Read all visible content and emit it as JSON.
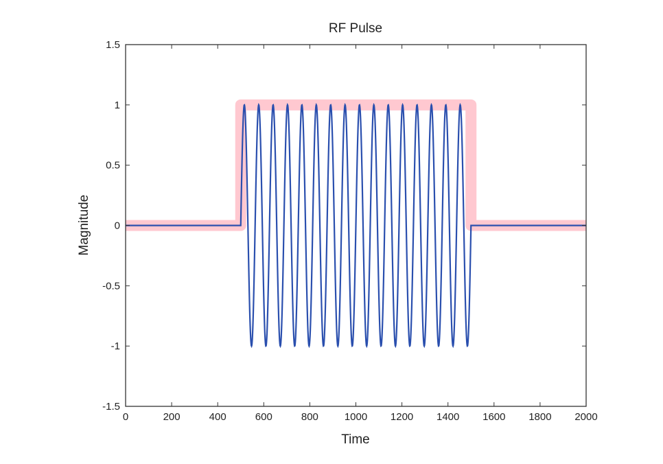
{
  "chart_data": {
    "type": "line",
    "title": "RF Pulse",
    "xlabel": "Time",
    "ylabel": "Magnitude",
    "xlim": [
      0,
      2000
    ],
    "ylim": [
      -1.5,
      1.5
    ],
    "xticks": [
      0,
      200,
      400,
      600,
      800,
      1000,
      1200,
      1400,
      1600,
      1800,
      2000
    ],
    "yticks": [
      -1.5,
      -1,
      -0.5,
      0,
      0.5,
      1,
      1.5
    ],
    "grid": false,
    "series": [
      {
        "role": "envelope",
        "color": "#ffc8d0",
        "x": [
          0,
          500,
          500,
          1500,
          1500,
          2000
        ],
        "y": [
          0,
          0,
          1,
          1,
          0,
          0
        ]
      },
      {
        "role": "carrier",
        "color": "#2a4fae",
        "pulse_start": 500,
        "pulse_end": 1500,
        "cycles": 16,
        "amplitude": 1,
        "baseline": 0
      }
    ]
  }
}
